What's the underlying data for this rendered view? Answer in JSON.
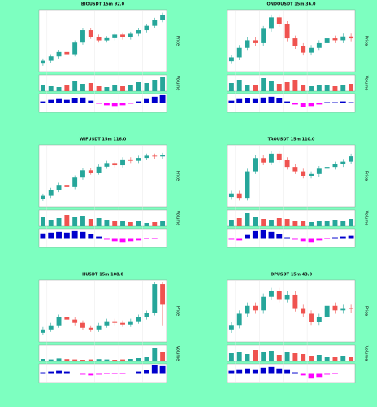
{
  "chart_data": [
    {
      "type": "candlestick",
      "title": "BIOUSDT 15m 92.0",
      "y_label": "Price",
      "volume_label": "Volume",
      "ohlc": [
        [
          26,
          33,
          23,
          30
        ],
        [
          30,
          39,
          27,
          36
        ],
        [
          36,
          45,
          33,
          42
        ],
        [
          42,
          45,
          36,
          39
        ],
        [
          39,
          58,
          36,
          55
        ],
        [
          55,
          75,
          52,
          72
        ],
        [
          72,
          75,
          60,
          63
        ],
        [
          63,
          66,
          55,
          58
        ],
        [
          58,
          64,
          55,
          61
        ],
        [
          61,
          69,
          58,
          66
        ],
        [
          66,
          69,
          59,
          62
        ],
        [
          62,
          70,
          59,
          67
        ],
        [
          67,
          75,
          64,
          72
        ],
        [
          72,
          81,
          69,
          78
        ],
        [
          78,
          89,
          75,
          86
        ],
        [
          86,
          96,
          83,
          93
        ]
      ],
      "volume": [
        40,
        30,
        25,
        35,
        60,
        45,
        50,
        30,
        25,
        35,
        30,
        40,
        55,
        50,
        70,
        90
      ],
      "macd": [
        2,
        4,
        5,
        4,
        6,
        7,
        3,
        -1,
        -3,
        -4,
        -3,
        -1,
        2,
        5,
        8,
        10
      ],
      "ylim": [
        15,
        100
      ],
      "volume_ylim": [
        0,
        100
      ],
      "macd_ylim": [
        -12,
        12
      ],
      "up_color": "#26a69a",
      "down_color": "#ef5350",
      "macd_up_color": "#0000cc",
      "macd_down_color": "#ff00ff",
      "grid": true
    },
    {
      "type": "candlestick",
      "title": "ONDOUSDT 15m 36.0",
      "y_label": "Price",
      "volume_label": "Volume",
      "ohlc": [
        [
          36,
          43,
          33,
          40
        ],
        [
          40,
          53,
          37,
          50
        ],
        [
          50,
          61,
          47,
          58
        ],
        [
          58,
          61,
          52,
          55
        ],
        [
          55,
          73,
          52,
          70
        ],
        [
          70,
          85,
          67,
          82
        ],
        [
          82,
          85,
          72,
          75
        ],
        [
          75,
          78,
          57,
          60
        ],
        [
          60,
          63,
          49,
          52
        ],
        [
          52,
          55,
          42,
          45
        ],
        [
          45,
          53,
          42,
          50
        ],
        [
          50,
          58,
          47,
          55
        ],
        [
          55,
          63,
          52,
          60
        ],
        [
          60,
          63,
          55,
          58
        ],
        [
          58,
          65,
          55,
          62
        ],
        [
          62,
          65,
          57,
          60
        ]
      ],
      "volume": [
        50,
        70,
        40,
        35,
        80,
        60,
        45,
        55,
        70,
        40,
        30,
        35,
        40,
        30,
        35,
        45
      ],
      "macd": [
        3,
        5,
        6,
        5,
        7,
        8,
        6,
        2,
        -2,
        -5,
        -4,
        -2,
        1,
        1,
        2,
        1
      ],
      "ylim": [
        25,
        90
      ],
      "volume_ylim": [
        0,
        100
      ],
      "macd_ylim": [
        -12,
        12
      ],
      "up_color": "#26a69a",
      "down_color": "#ef5350",
      "macd_up_color": "#0000cc",
      "macd_down_color": "#ff00ff",
      "grid": true
    },
    {
      "type": "candlestick",
      "title": "WIFUSDT 15m 116.0",
      "y_label": "Price",
      "volume_label": "Volume",
      "ohlc": [
        [
          16,
          23,
          13,
          20
        ],
        [
          20,
          31,
          17,
          28
        ],
        [
          28,
          38,
          25,
          35
        ],
        [
          35,
          38,
          29,
          32
        ],
        [
          32,
          48,
          29,
          45
        ],
        [
          45,
          58,
          42,
          55
        ],
        [
          55,
          58,
          49,
          52
        ],
        [
          52,
          63,
          49,
          60
        ],
        [
          60,
          68,
          57,
          65
        ],
        [
          65,
          68,
          59,
          62
        ],
        [
          62,
          73,
          59,
          70
        ],
        [
          70,
          73,
          65,
          68
        ],
        [
          68,
          75,
          65,
          72
        ],
        [
          72,
          78,
          69,
          75
        ],
        [
          75,
          78,
          71,
          74
        ],
        [
          74,
          79,
          71,
          76
        ]
      ],
      "volume": [
        60,
        40,
        50,
        70,
        55,
        65,
        45,
        50,
        40,
        35,
        30,
        25,
        30,
        20,
        25,
        30
      ],
      "macd": [
        6,
        7,
        8,
        7,
        9,
        8,
        5,
        2,
        -2,
        -4,
        -5,
        -4,
        -3,
        -1,
        -1,
        0
      ],
      "ylim": [
        5,
        90
      ],
      "volume_ylim": [
        0,
        100
      ],
      "macd_ylim": [
        -12,
        12
      ],
      "up_color": "#26a69a",
      "down_color": "#ef5350",
      "macd_up_color": "#0000cc",
      "macd_down_color": "#ff00ff",
      "grid": true
    },
    {
      "type": "candlestick",
      "title": "TAOUSDT 15m 110.0",
      "y_label": "Price",
      "volume_label": "Volume",
      "ohlc": [
        [
          26,
          33,
          23,
          30
        ],
        [
          30,
          33,
          22,
          25
        ],
        [
          25,
          58,
          22,
          55
        ],
        [
          55,
          73,
          52,
          70
        ],
        [
          70,
          73,
          62,
          65
        ],
        [
          65,
          78,
          62,
          75
        ],
        [
          75,
          78,
          65,
          68
        ],
        [
          68,
          71,
          57,
          60
        ],
        [
          60,
          63,
          52,
          55
        ],
        [
          55,
          58,
          47,
          50
        ],
        [
          50,
          55,
          47,
          52
        ],
        [
          52,
          61,
          49,
          58
        ],
        [
          58,
          63,
          55,
          60
        ],
        [
          60,
          66,
          57,
          63
        ],
        [
          63,
          69,
          60,
          66
        ],
        [
          66,
          75,
          63,
          72
        ]
      ],
      "volume": [
        40,
        50,
        80,
        60,
        45,
        40,
        50,
        45,
        35,
        30,
        25,
        30,
        35,
        40,
        30,
        45
      ],
      "macd": [
        -2,
        -3,
        4,
        9,
        10,
        8,
        5,
        1,
        -2,
        -4,
        -5,
        -3,
        -1,
        1,
        2,
        3
      ],
      "ylim": [
        15,
        85
      ],
      "volume_ylim": [
        0,
        100
      ],
      "macd_ylim": [
        -12,
        12
      ],
      "up_color": "#26a69a",
      "down_color": "#ef5350",
      "macd_up_color": "#0000cc",
      "macd_down_color": "#ff00ff",
      "grid": true
    },
    {
      "type": "candlestick",
      "title": "HUSDT 15m 108.0",
      "y_label": "Price",
      "volume_label": "Volume",
      "ohlc": [
        [
          36,
          43,
          33,
          40
        ],
        [
          40,
          48,
          37,
          45
        ],
        [
          45,
          58,
          42,
          55
        ],
        [
          55,
          58,
          49,
          52
        ],
        [
          52,
          55,
          45,
          48
        ],
        [
          48,
          51,
          39,
          42
        ],
        [
          42,
          45,
          37,
          40
        ],
        [
          40,
          48,
          37,
          45
        ],
        [
          45,
          53,
          42,
          50
        ],
        [
          50,
          53,
          45,
          48
        ],
        [
          48,
          51,
          43,
          46
        ],
        [
          46,
          53,
          43,
          50
        ],
        [
          50,
          58,
          47,
          55
        ],
        [
          55,
          63,
          52,
          60
        ],
        [
          60,
          98,
          57,
          95
        ],
        [
          95,
          98,
          45,
          70
        ]
      ],
      "volume": [
        15,
        12,
        18,
        14,
        12,
        10,
        12,
        14,
        12,
        10,
        12,
        15,
        20,
        30,
        85,
        60
      ],
      "macd": [
        1,
        2,
        3,
        2,
        0,
        -2,
        -3,
        -2,
        -1,
        -1,
        -1,
        0,
        2,
        4,
        10,
        9
      ],
      "ylim": [
        25,
        100
      ],
      "volume_ylim": [
        0,
        100
      ],
      "macd_ylim": [
        -12,
        12
      ],
      "up_color": "#26a69a",
      "down_color": "#ef5350",
      "macd_up_color": "#0000cc",
      "macd_down_color": "#ff00ff",
      "grid": true
    },
    {
      "type": "candlestick",
      "title": "OPUSDT 15m 43.0",
      "y_label": "Price",
      "volume_label": "Volume",
      "ohlc": [
        [
          41,
          48,
          38,
          45
        ],
        [
          45,
          58,
          42,
          55
        ],
        [
          55,
          65,
          52,
          62
        ],
        [
          62,
          65,
          55,
          58
        ],
        [
          58,
          73,
          55,
          70
        ],
        [
          70,
          78,
          67,
          75
        ],
        [
          75,
          78,
          65,
          68
        ],
        [
          68,
          75,
          65,
          72
        ],
        [
          72,
          75,
          57,
          60
        ],
        [
          60,
          63,
          52,
          55
        ],
        [
          55,
          58,
          45,
          48
        ],
        [
          48,
          55,
          45,
          52
        ],
        [
          52,
          65,
          49,
          62
        ],
        [
          62,
          65,
          55,
          58
        ],
        [
          58,
          63,
          55,
          60
        ],
        [
          60,
          63,
          56,
          59
        ]
      ],
      "volume": [
        50,
        60,
        45,
        70,
        55,
        65,
        40,
        60,
        50,
        45,
        35,
        40,
        30,
        25,
        35,
        30
      ],
      "macd": [
        3,
        5,
        6,
        5,
        7,
        8,
        6,
        5,
        1,
        -3,
        -6,
        -5,
        -2,
        -1,
        0,
        0
      ],
      "ylim": [
        30,
        85
      ],
      "volume_ylim": [
        0,
        100
      ],
      "macd_ylim": [
        -12,
        12
      ],
      "up_color": "#26a69a",
      "down_color": "#ef5350",
      "macd_up_color": "#0000cc",
      "macd_down_color": "#ff00ff",
      "grid": true
    }
  ]
}
